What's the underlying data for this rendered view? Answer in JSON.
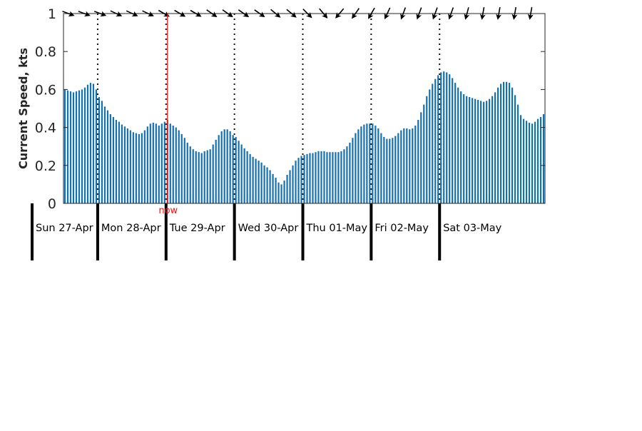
{
  "chart_data": {
    "type": "bar",
    "title": "",
    "xlabel": "",
    "ylabel": "Current Speed, kts",
    "ylim": [
      0,
      1
    ],
    "yticks": [
      0,
      0.2,
      0.4,
      0.6,
      0.8,
      1
    ],
    "ytick_labels": [
      "0",
      "0.2",
      "0.4",
      "0.6",
      "0.8",
      "1"
    ],
    "grid": false,
    "bar_color": "#0e72b5",
    "now_marker": {
      "label": "now",
      "color": "#e8191b",
      "index": 36
    },
    "day_labels": [
      "Sun 27-Apr",
      "Mon 28-Apr",
      "Tue 29-Apr",
      "Wed 30-Apr",
      "Thu 01-May",
      "Fri 02-May",
      "Sat 03-May"
    ],
    "day_start_indices": [
      0,
      12,
      36,
      60,
      84,
      108,
      132
    ],
    "values": [
      0.6,
      0.595,
      0.59,
      0.585,
      0.59,
      0.595,
      0.6,
      0.61,
      0.625,
      0.635,
      0.63,
      0.6,
      0.56,
      0.54,
      0.51,
      0.49,
      0.47,
      0.455,
      0.44,
      0.43,
      0.415,
      0.405,
      0.395,
      0.385,
      0.375,
      0.37,
      0.365,
      0.37,
      0.385,
      0.405,
      0.42,
      0.425,
      0.42,
      0.41,
      0.42,
      0.43,
      0.44,
      0.42,
      0.41,
      0.4,
      0.385,
      0.365,
      0.345,
      0.32,
      0.3,
      0.285,
      0.275,
      0.27,
      0.265,
      0.275,
      0.28,
      0.285,
      0.31,
      0.335,
      0.36,
      0.38,
      0.39,
      0.39,
      0.38,
      0.36,
      0.35,
      0.33,
      0.31,
      0.29,
      0.275,
      0.26,
      0.245,
      0.235,
      0.225,
      0.215,
      0.2,
      0.19,
      0.175,
      0.155,
      0.135,
      0.11,
      0.1,
      0.12,
      0.15,
      0.175,
      0.2,
      0.225,
      0.24,
      0.25,
      0.255,
      0.26,
      0.265,
      0.265,
      0.27,
      0.275,
      0.275,
      0.275,
      0.27,
      0.27,
      0.27,
      0.27,
      0.27,
      0.275,
      0.285,
      0.3,
      0.32,
      0.345,
      0.37,
      0.39,
      0.405,
      0.415,
      0.42,
      0.42,
      0.42,
      0.41,
      0.395,
      0.37,
      0.35,
      0.34,
      0.34,
      0.345,
      0.355,
      0.37,
      0.385,
      0.395,
      0.395,
      0.39,
      0.395,
      0.41,
      0.44,
      0.48,
      0.52,
      0.565,
      0.6,
      0.63,
      0.655,
      0.675,
      0.69,
      0.695,
      0.69,
      0.68,
      0.66,
      0.635,
      0.61,
      0.59,
      0.575,
      0.565,
      0.56,
      0.555,
      0.55,
      0.545,
      0.54,
      0.535,
      0.54,
      0.55,
      0.565,
      0.585,
      0.61,
      0.63,
      0.64,
      0.64,
      0.635,
      0.61,
      0.57,
      0.52,
      0.465,
      0.445,
      0.435,
      0.425,
      0.42,
      0.43,
      0.445,
      0.455,
      0.47
    ],
    "direction_arrows": [
      110,
      110,
      110,
      115,
      115,
      115,
      120,
      120,
      120,
      125,
      125,
      125,
      125,
      130,
      130,
      135,
      140,
      220,
      215,
      210,
      205,
      200,
      200,
      200,
      200,
      195,
      190,
      190,
      190,
      190
    ]
  }
}
